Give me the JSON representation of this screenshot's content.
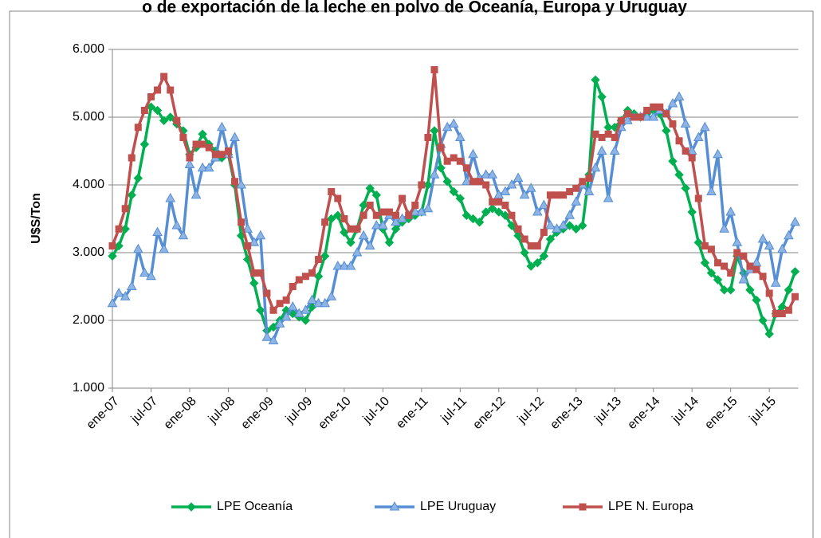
{
  "chart_data": {
    "type": "line",
    "title": "o de exportación de la leche en polvo de Oceanía, Europa y Uruguay",
    "y_label": "U$S/Ton",
    "categories": [
      "ene-07",
      null,
      null,
      null,
      null,
      null,
      "jul-07",
      null,
      null,
      null,
      null,
      null,
      "ene-08",
      null,
      null,
      null,
      null,
      null,
      "jul-08",
      null,
      null,
      null,
      null,
      null,
      "ene-09",
      null,
      null,
      null,
      null,
      null,
      "jul-09",
      null,
      null,
      null,
      null,
      null,
      "ene-10",
      null,
      null,
      null,
      null,
      null,
      "jul-10",
      null,
      null,
      null,
      null,
      null,
      "ene-11",
      null,
      null,
      null,
      null,
      null,
      "jul-11",
      null,
      null,
      null,
      null,
      null,
      "ene-12",
      null,
      null,
      null,
      null,
      null,
      "jul-12",
      null,
      null,
      null,
      null,
      null,
      "ene-13",
      null,
      null,
      null,
      null,
      null,
      "jul-13",
      null,
      null,
      null,
      null,
      null,
      "ene-14",
      null,
      null,
      null,
      null,
      null,
      "jul-14",
      null,
      null,
      null,
      null,
      null,
      "ene-15",
      null,
      null,
      null,
      null,
      null,
      "jul-15",
      null,
      null,
      null,
      null
    ],
    "series": [
      {
        "name": "LPE Oceanía",
        "color": "#00b050",
        "marker": "diamond",
        "values": [
          2950,
          3100,
          3350,
          3850,
          4100,
          4600,
          5150,
          5100,
          4950,
          5000,
          4900,
          4800,
          4450,
          4550,
          4750,
          4600,
          4500,
          4400,
          4450,
          4000,
          3250,
          2900,
          2550,
          2150,
          1850,
          1900,
          2000,
          2150,
          2100,
          2050,
          2000,
          2200,
          2650,
          2950,
          3500,
          3550,
          3300,
          3150,
          3350,
          3700,
          3950,
          3850,
          3350,
          3150,
          3350,
          3450,
          3500,
          3550,
          3600,
          4000,
          4800,
          4250,
          4050,
          3900,
          3800,
          3550,
          3500,
          3450,
          3600,
          3650,
          3600,
          3550,
          3400,
          3250,
          3000,
          2800,
          2850,
          2950,
          3200,
          3300,
          3350,
          3400,
          3350,
          3400,
          4150,
          5550,
          5300,
          4850,
          4850,
          4950,
          5100,
          5050,
          5000,
          5050,
          5100,
          5050,
          4800,
          4350,
          4150,
          3950,
          3600,
          3150,
          2850,
          2700,
          2600,
          2450,
          2450,
          2950,
          2700,
          2450,
          2300,
          2000,
          1800,
          2100,
          2200,
          2450,
          2720
        ]
      },
      {
        "name": "LPE Uruguay",
        "color": "#558ed5",
        "marker": "triangle",
        "values": [
          2250,
          2400,
          2350,
          2500,
          3050,
          2700,
          2650,
          3300,
          3050,
          3800,
          3400,
          3250,
          4300,
          3850,
          4250,
          4250,
          4400,
          4850,
          4450,
          4700,
          4000,
          3350,
          3150,
          3250,
          1750,
          1700,
          1950,
          2050,
          2200,
          2100,
          2150,
          2300,
          2250,
          2250,
          2350,
          2800,
          2800,
          2800,
          3000,
          3250,
          3100,
          3400,
          3400,
          3550,
          3450,
          3500,
          3550,
          3600,
          3600,
          3650,
          4150,
          4600,
          4850,
          4900,
          4700,
          4050,
          4450,
          4100,
          4150,
          4150,
          3850,
          3900,
          4000,
          4100,
          3850,
          3950,
          3600,
          3700,
          3400,
          3350,
          3400,
          3550,
          3750,
          4000,
          3900,
          4250,
          4500,
          3800,
          4500,
          4850,
          4950,
          5000,
          5000,
          5000,
          5000,
          5100,
          5050,
          5200,
          5300,
          4900,
          4500,
          4700,
          4850,
          3900,
          4450,
          3350,
          3600,
          3150,
          2600,
          2750,
          2850,
          3200,
          3100,
          2550,
          3050,
          3250,
          3450
        ]
      },
      {
        "name": "LPE N. Europa",
        "color": "#c0504d",
        "marker": "square",
        "values": [
          3100,
          3350,
          3650,
          4400,
          4850,
          5100,
          5300,
          5400,
          5600,
          5400,
          4950,
          4700,
          4400,
          4600,
          4600,
          4550,
          4450,
          4450,
          4500,
          4050,
          3450,
          3100,
          2700,
          2700,
          2400,
          2150,
          2250,
          2300,
          2500,
          2600,
          2650,
          2700,
          2900,
          3450,
          3900,
          3800,
          3500,
          3350,
          3350,
          3550,
          3700,
          3550,
          3600,
          3600,
          3550,
          3800,
          3550,
          3700,
          4000,
          4700,
          5700,
          4550,
          4350,
          4400,
          4350,
          4250,
          4050,
          4050,
          4000,
          3750,
          3750,
          3700,
          3550,
          3350,
          3200,
          3100,
          3100,
          3300,
          3850,
          3850,
          3850,
          3900,
          3950,
          4050,
          4100,
          4750,
          4700,
          4750,
          4700,
          4950,
          5050,
          5000,
          5000,
          5100,
          5150,
          5150,
          5050,
          4900,
          4650,
          4500,
          4400,
          3800,
          3100,
          3050,
          2850,
          2800,
          2700,
          3000,
          2950,
          2800,
          2750,
          2650,
          2400,
          2100,
          2100,
          2150,
          2350
        ]
      }
    ],
    "ylim": [
      1000,
      6000
    ],
    "yticks": [
      {
        "value": 1000,
        "label": "1.000"
      },
      {
        "value": 2000,
        "label": "2.000"
      },
      {
        "value": 3000,
        "label": "3.000"
      },
      {
        "value": 4000,
        "label": "4.000"
      },
      {
        "value": 5000,
        "label": "5.000"
      },
      {
        "value": 6000,
        "label": "6.000"
      }
    ],
    "grid": true,
    "legend": "bottom"
  }
}
